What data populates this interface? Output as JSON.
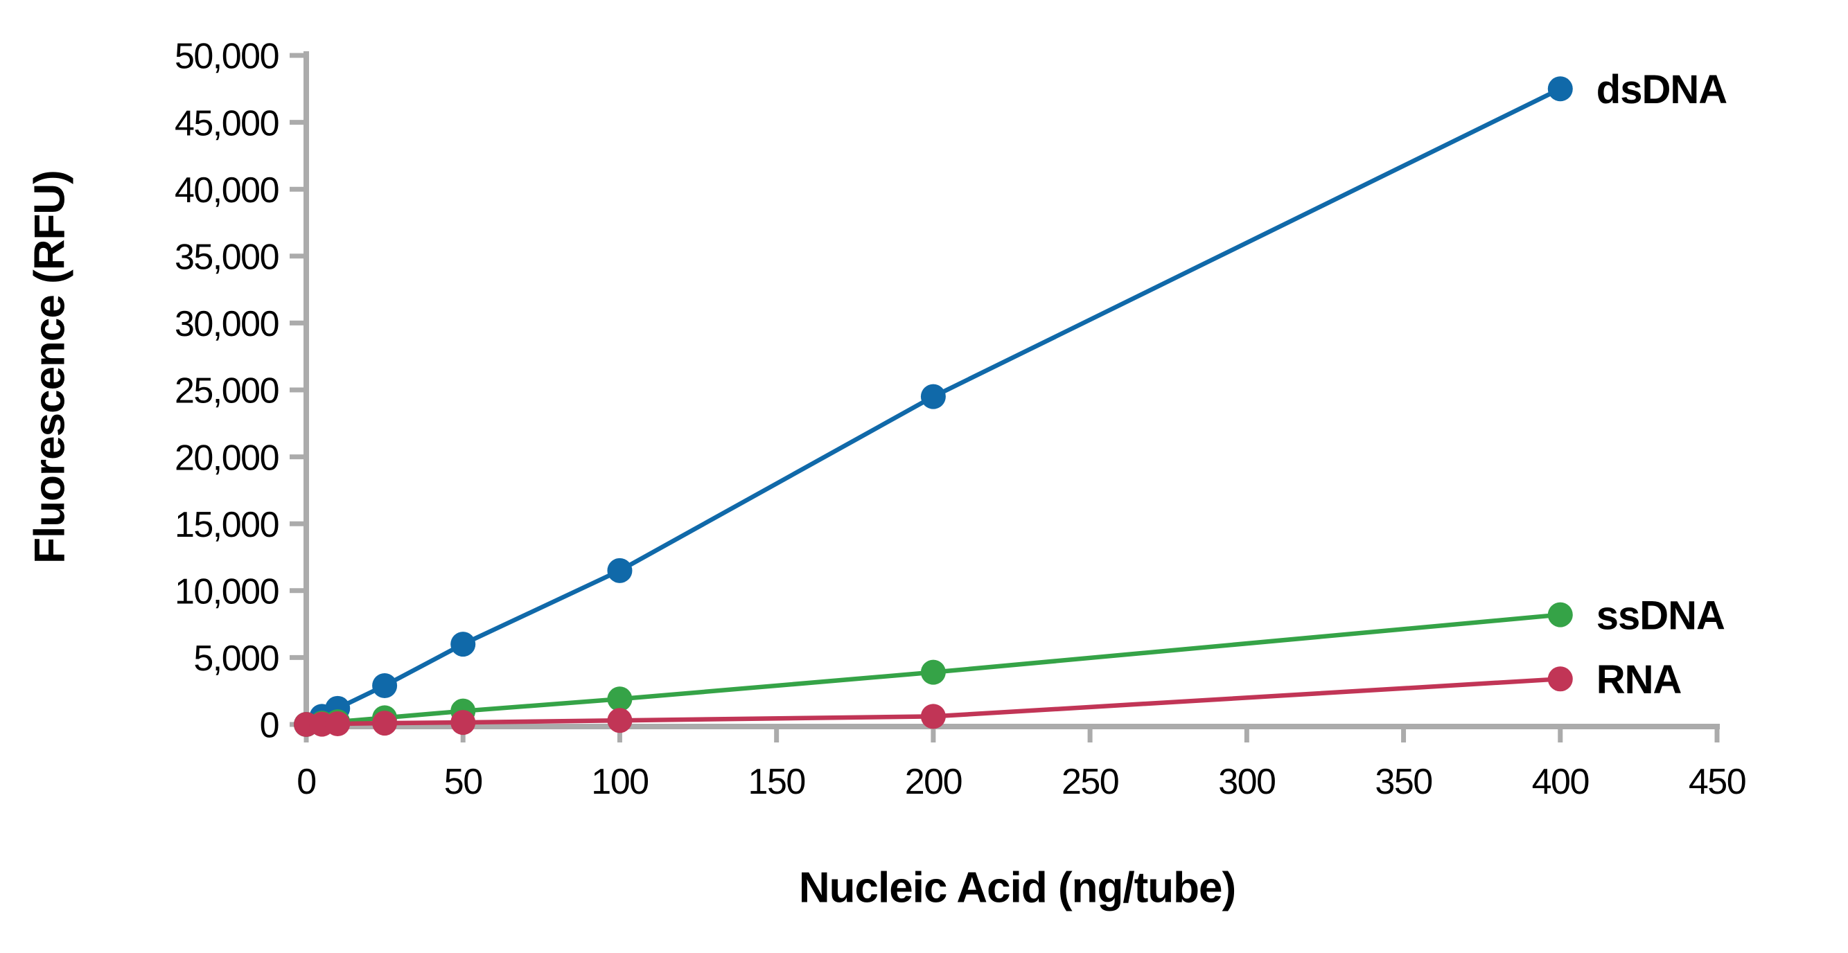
{
  "figure": {
    "background": "#ffffff",
    "axis_color": "#ABABAB",
    "text_color": "#000000"
  },
  "chart_data": {
    "type": "line",
    "title": "",
    "xlabel": "Nucleic Acid (ng/tube)",
    "ylabel": "Fluorescence (RFU)",
    "xlim": [
      0,
      450
    ],
    "ylim": [
      0,
      50000
    ],
    "x_ticks": [
      0,
      50,
      100,
      150,
      200,
      250,
      300,
      350,
      400,
      450
    ],
    "y_ticks": [
      0,
      5000,
      10000,
      15000,
      20000,
      25000,
      30000,
      35000,
      40000,
      45000,
      50000
    ],
    "y_tick_format": "comma",
    "grid": false,
    "legend_position": "line-end-labels",
    "x": [
      0,
      5,
      10,
      25,
      50,
      100,
      200,
      400
    ],
    "series": [
      {
        "name": "dsDNA",
        "color": "#1069A9",
        "values": [
          0,
          600,
          1200,
          2900,
          6000,
          11500,
          24500,
          47500
        ]
      },
      {
        "name": "ssDNA",
        "color": "#35A347",
        "values": [
          0,
          100,
          200,
          500,
          1000,
          1900,
          3900,
          8200
        ]
      },
      {
        "name": "RNA",
        "color": "#C13556",
        "values": [
          0,
          20,
          50,
          100,
          150,
          300,
          600,
          3400
        ]
      }
    ]
  }
}
